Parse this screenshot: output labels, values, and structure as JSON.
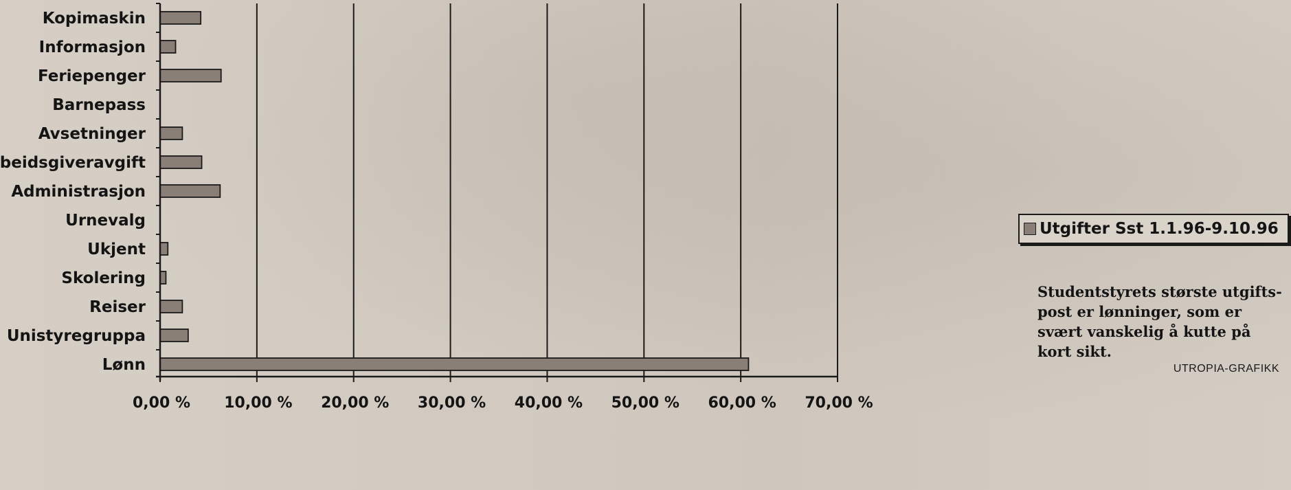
{
  "chart_data": {
    "type": "bar",
    "orientation": "horizontal",
    "categories": [
      "Kopimaskin",
      "Informasjon",
      "Feriepenger",
      "Barnepass",
      "Avsetninger",
      "Arbeidsgiveravgift",
      "Administrasjon",
      "Urnevalg",
      "Ukjent",
      "Skolering",
      "Reiser",
      "Unistyregruppa",
      "Lønn"
    ],
    "series": [
      {
        "name": "Utgifter Sst 1.1.96-9.10.96",
        "values": [
          4.2,
          1.6,
          6.3,
          0,
          2.3,
          4.3,
          6.2,
          0,
          0.8,
          0.6,
          2.3,
          2.9,
          60.8
        ]
      }
    ],
    "xlim": [
      0,
      70
    ],
    "xticks": [
      0,
      10,
      20,
      30,
      40,
      50,
      60,
      70
    ],
    "xtick_labels": [
      "0,00 %",
      "10,00 %",
      "20,00 %",
      "30,00 %",
      "40,00 %",
      "50,00 %",
      "60,00 %",
      "70,00 %"
    ],
    "grid": "vertical gridlines",
    "legend_position": "right",
    "bar_color": "#8a7f76"
  },
  "caption": {
    "lines": [
      "Studentstyrets største utgifts-",
      "post er lønninger, som er",
      "svært vanskelig å kutte på",
      "kort sikt."
    ],
    "credit": "UTROPIA-GRAFIKK"
  }
}
